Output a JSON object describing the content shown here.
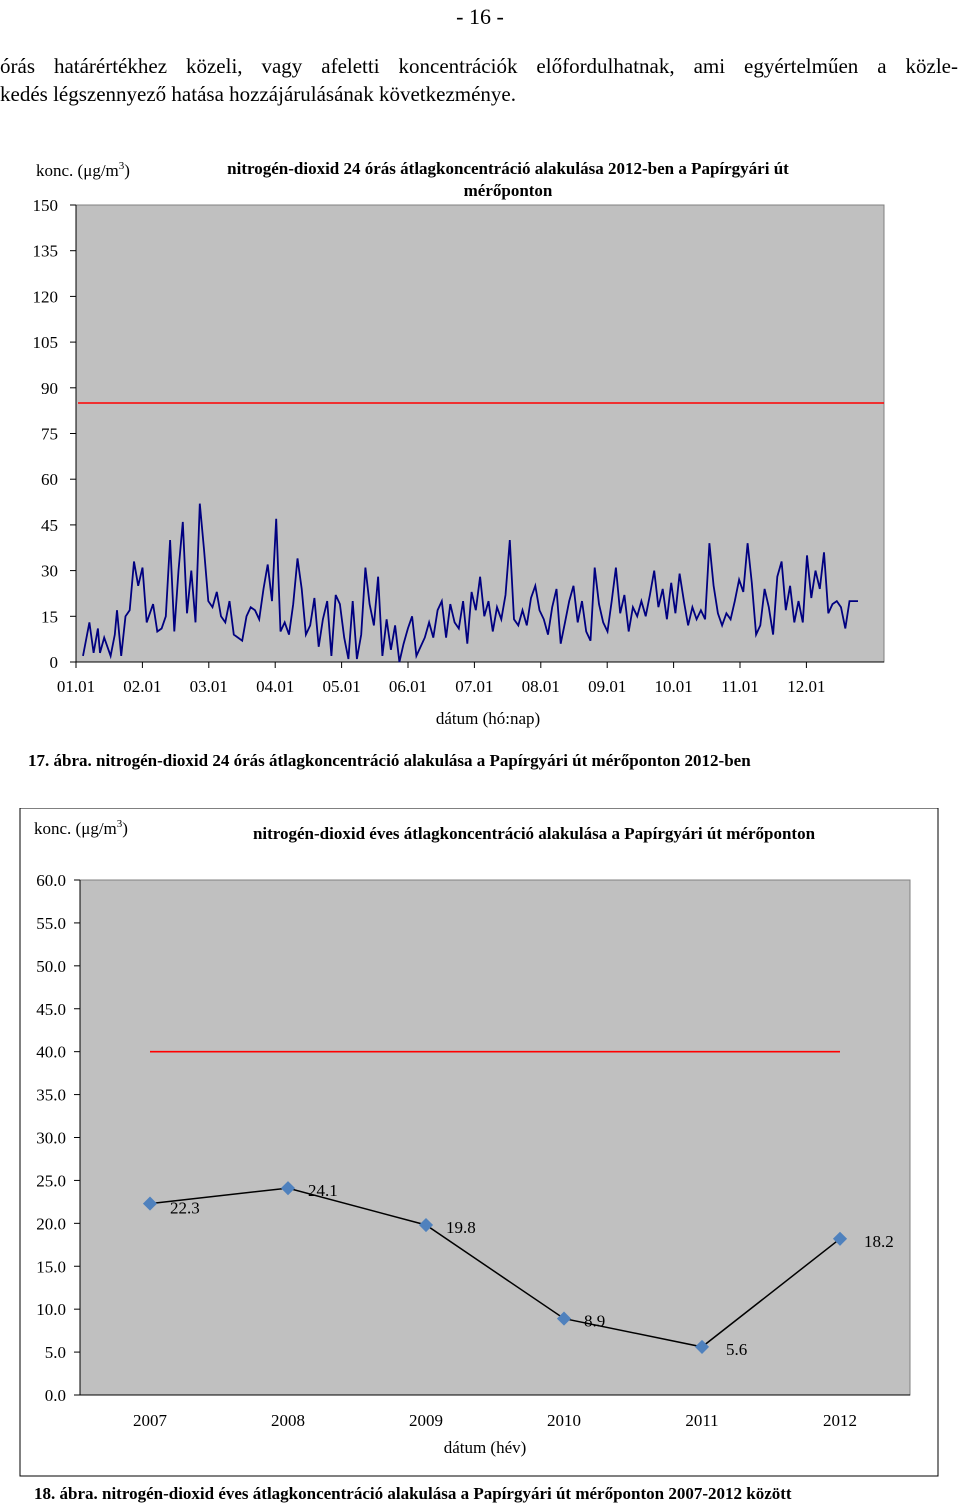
{
  "page": {
    "number": "- 16 -",
    "paragraph_lines": [
      "órás határértékhez közeli, vagy afeletti koncentrációk előfordulhatnak, ami egyértelműen a közle-",
      "kedés légszennyező hatása hozzájárulásának következménye."
    ]
  },
  "figure1": {
    "caption": "17. ábra. nitrogén-dioxid 24 órás átlagkoncentráció alakulása a Papírgyári út mérőponton 2012-ben",
    "ylabel_prefix": "konc. (μg/m",
    "ylabel_sup": "3",
    "ylabel_suffix": ")",
    "title_line1": "nitrogén-dioxid 24 órás átlagkoncentráció alakulása 2012-ben a Papírgyári út",
    "title_line2": "mérőponton",
    "xlabel": "dátum (hó:nap)",
    "colors": {
      "plot_bg": "#c0c0c0",
      "series": "#000080",
      "limit": "#ff0000"
    }
  },
  "figure2": {
    "caption": "18. ábra. nitrogén-dioxid éves átlagkoncentráció alakulása a Papírgyári út mérőponton 2007-2012 között",
    "ylabel_prefix": "konc. (μg/m",
    "ylabel_sup": "3",
    "ylabel_suffix": ")",
    "title": "nitrogén-dioxid éves átlagkoncentráció alakulása a Papírgyári út mérőponton",
    "xlabel": "dátum (hév)",
    "colors": {
      "plot_bg": "#c0c0c0",
      "series": "#000000",
      "marker": "#4f81bd",
      "limit": "#ff0000"
    }
  },
  "chart_data": [
    {
      "type": "line",
      "xlabel": "dátum (hó:nap)",
      "ylim": [
        0,
        150
      ],
      "yticks": [
        "0",
        "15",
        "30",
        "45",
        "60",
        "75",
        "90",
        "105",
        "120",
        "135",
        "150"
      ],
      "xticks": [
        "01.01",
        "02.01",
        "03.01",
        "04.01",
        "05.01",
        "06.01",
        "07.01",
        "08.01",
        "09.01",
        "10.01",
        "11.01",
        "12.01"
      ],
      "limit_line": 85,
      "day_count": 366,
      "anchors": [
        [
          0,
          2
        ],
        [
          3,
          13
        ],
        [
          5,
          3
        ],
        [
          7,
          11
        ],
        [
          8,
          3
        ],
        [
          10,
          8
        ],
        [
          13,
          2
        ],
        [
          15,
          9
        ],
        [
          16,
          17
        ],
        [
          18,
          2
        ],
        [
          20,
          15
        ],
        [
          22,
          17
        ],
        [
          24,
          33
        ],
        [
          26,
          25
        ],
        [
          28,
          31
        ],
        [
          30,
          13
        ],
        [
          33,
          19
        ],
        [
          35,
          10
        ],
        [
          37,
          11
        ],
        [
          39,
          15
        ],
        [
          41,
          40
        ],
        [
          43,
          10
        ],
        [
          45,
          30
        ],
        [
          47,
          46
        ],
        [
          49,
          16
        ],
        [
          51,
          30
        ],
        [
          53,
          13
        ],
        [
          55,
          52
        ],
        [
          57,
          37
        ],
        [
          59,
          20
        ],
        [
          61,
          18
        ],
        [
          63,
          23
        ],
        [
          65,
          15
        ],
        [
          67,
          13
        ],
        [
          69,
          20
        ],
        [
          71,
          9
        ],
        [
          73,
          8
        ],
        [
          75,
          7
        ],
        [
          77,
          15
        ],
        [
          79,
          18
        ],
        [
          81,
          17
        ],
        [
          83,
          14
        ],
        [
          85,
          24
        ],
        [
          87,
          32
        ],
        [
          89,
          20
        ],
        [
          91,
          47
        ],
        [
          93,
          10
        ],
        [
          95,
          13
        ],
        [
          97,
          9
        ],
        [
          99,
          19
        ],
        [
          101,
          34
        ],
        [
          103,
          24
        ],
        [
          105,
          9
        ],
        [
          107,
          12
        ],
        [
          109,
          21
        ],
        [
          111,
          5
        ],
        [
          113,
          14
        ],
        [
          115,
          20
        ],
        [
          117,
          2
        ],
        [
          119,
          22
        ],
        [
          121,
          19
        ],
        [
          123,
          8
        ],
        [
          125,
          1
        ],
        [
          127,
          20
        ],
        [
          129,
          1
        ],
        [
          131,
          9
        ],
        [
          133,
          31
        ],
        [
          135,
          19
        ],
        [
          137,
          12
        ],
        [
          139,
          28
        ],
        [
          141,
          2
        ],
        [
          143,
          14
        ],
        [
          145,
          4
        ],
        [
          147,
          12
        ],
        [
          149,
          0
        ],
        [
          151,
          6
        ],
        [
          153,
          11
        ],
        [
          155,
          15
        ],
        [
          157,
          2
        ],
        [
          159,
          5
        ],
        [
          161,
          8
        ],
        [
          163,
          13
        ],
        [
          165,
          8
        ],
        [
          167,
          17
        ],
        [
          169,
          20
        ],
        [
          171,
          8
        ],
        [
          173,
          19
        ],
        [
          175,
          13
        ],
        [
          177,
          11
        ],
        [
          179,
          20
        ],
        [
          181,
          6
        ],
        [
          183,
          23
        ],
        [
          185,
          17
        ],
        [
          187,
          28
        ],
        [
          189,
          15
        ],
        [
          191,
          20
        ],
        [
          193,
          10
        ],
        [
          195,
          18
        ],
        [
          197,
          14
        ],
        [
          199,
          22
        ],
        [
          201,
          40
        ],
        [
          203,
          14
        ],
        [
          205,
          12
        ],
        [
          207,
          17
        ],
        [
          209,
          12
        ],
        [
          211,
          21
        ],
        [
          213,
          25
        ],
        [
          215,
          17
        ],
        [
          217,
          14
        ],
        [
          219,
          9
        ],
        [
          221,
          18
        ],
        [
          223,
          24
        ],
        [
          225,
          6
        ],
        [
          227,
          13
        ],
        [
          229,
          20
        ],
        [
          231,
          25
        ],
        [
          233,
          13
        ],
        [
          235,
          20
        ],
        [
          237,
          10
        ],
        [
          239,
          7
        ],
        [
          241,
          31
        ],
        [
          243,
          19
        ],
        [
          245,
          13
        ],
        [
          247,
          10
        ],
        [
          249,
          20
        ],
        [
          251,
          31
        ],
        [
          253,
          16
        ],
        [
          255,
          22
        ],
        [
          257,
          10
        ],
        [
          259,
          18
        ],
        [
          261,
          15
        ],
        [
          263,
          20
        ],
        [
          265,
          15
        ],
        [
          267,
          22
        ],
        [
          269,
          30
        ],
        [
          271,
          18
        ],
        [
          273,
          24
        ],
        [
          275,
          14
        ],
        [
          277,
          26
        ],
        [
          279,
          16
        ],
        [
          281,
          29
        ],
        [
          283,
          20
        ],
        [
          285,
          12
        ],
        [
          287,
          18
        ],
        [
          289,
          14
        ],
        [
          291,
          17
        ],
        [
          293,
          14
        ],
        [
          295,
          39
        ],
        [
          297,
          25
        ],
        [
          299,
          16
        ],
        [
          301,
          12
        ],
        [
          303,
          16
        ],
        [
          305,
          14
        ],
        [
          307,
          20
        ],
        [
          309,
          27
        ],
        [
          311,
          23
        ],
        [
          313,
          39
        ],
        [
          315,
          26
        ],
        [
          317,
          9
        ],
        [
          319,
          12
        ],
        [
          321,
          24
        ],
        [
          323,
          18
        ],
        [
          325,
          9
        ],
        [
          327,
          28
        ],
        [
          329,
          33
        ],
        [
          331,
          17
        ],
        [
          333,
          25
        ],
        [
          335,
          13
        ],
        [
          337,
          20
        ],
        [
          339,
          13
        ],
        [
          341,
          35
        ],
        [
          343,
          21
        ],
        [
          345,
          30
        ],
        [
          347,
          24
        ],
        [
          349,
          36
        ],
        [
          351,
          16
        ],
        [
          353,
          19
        ],
        [
          355,
          20
        ],
        [
          357,
          18
        ],
        [
          359,
          11
        ],
        [
          361,
          20
        ],
        [
          365,
          20
        ]
      ]
    },
    {
      "type": "line",
      "xlabel": "dátum (hév)",
      "ylim": [
        0,
        60
      ],
      "yticks": [
        "0.0",
        "5.0",
        "10.0",
        "15.0",
        "20.0",
        "25.0",
        "30.0",
        "35.0",
        "40.0",
        "45.0",
        "50.0",
        "55.0",
        "60.0"
      ],
      "categories": [
        "2007",
        "2008",
        "2009",
        "2010",
        "2011",
        "2012"
      ],
      "values": [
        22.3,
        24.1,
        19.8,
        8.9,
        5.6,
        18.2
      ],
      "data_labels": [
        "22.3",
        "24.1",
        "19.8",
        "8.9",
        "5.6",
        "18.2"
      ],
      "limit_line": 40
    }
  ]
}
